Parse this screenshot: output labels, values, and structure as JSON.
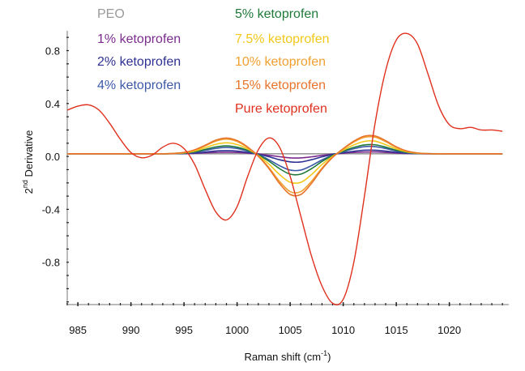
{
  "chart_data": {
    "type": "line",
    "xlabel": "Raman shift (cm",
    "xlabel_sup": "-1",
    "xlabel_end": ")",
    "ylabel": "2",
    "ylabel_sup": "nd",
    "ylabel_end": " Derivative",
    "xlim": [
      984,
      1025.6
    ],
    "ylim": [
      -1.12,
      0.95
    ],
    "xticks": [
      985,
      990,
      995,
      1000,
      1005,
      1010,
      1015,
      1020
    ],
    "xtick_labels": [
      "985",
      "990",
      "995",
      "1000",
      "1005",
      "1010",
      "1015",
      "1020"
    ],
    "yticks": [
      0.8,
      0.4,
      0.0,
      -0.4,
      -0.8
    ],
    "ytick_labels": [
      "0.8",
      "0.4",
      "0.0",
      "-0.4",
      "-0.8"
    ],
    "grid": false,
    "legend_placement": "top",
    "x": [
      984,
      985,
      986,
      987,
      988,
      989,
      990,
      991,
      992,
      993,
      994,
      995,
      996,
      997,
      998,
      999,
      1000,
      1001,
      1002,
      1003,
      1004,
      1005,
      1006,
      1007,
      1008,
      1009,
      1010,
      1011,
      1012,
      1013,
      1014,
      1015,
      1016,
      1017,
      1018,
      1019,
      1020,
      1021,
      1022,
      1023,
      1024,
      1025
    ],
    "series": [
      {
        "name": "PEO",
        "color": "#9a9a9a",
        "values": [
          0.02,
          0.02,
          0.02,
          0.02,
          0.02,
          0.02,
          0.02,
          0.02,
          0.02,
          0.02,
          0.02,
          0.02,
          0.02,
          0.02,
          0.02,
          0.02,
          0.02,
          0.02,
          0.02,
          0.02,
          0.02,
          0.02,
          0.02,
          0.02,
          0.02,
          0.02,
          0.02,
          0.02,
          0.02,
          0.02,
          0.02,
          0.02,
          0.02,
          0.02,
          0.02,
          0.02,
          0.02,
          0.02,
          0.02,
          0.02,
          0.02,
          0.02
        ]
      },
      {
        "name": "1% ketoprofen",
        "color": "#7b2d8e",
        "values": [
          0.02,
          0.02,
          0.02,
          0.02,
          0.02,
          0.02,
          0.02,
          0.02,
          0.02,
          0.02,
          0.02,
          0.021,
          0.023,
          0.027,
          0.03,
          0.032,
          0.03,
          0.025,
          0.018,
          0.009,
          -0.002,
          -0.011,
          -0.011,
          -0.003,
          0.008,
          0.017,
          0.024,
          0.03,
          0.033,
          0.034,
          0.03,
          0.025,
          0.022,
          0.021,
          0.02,
          0.02,
          0.02,
          0.02,
          0.02,
          0.02,
          0.02,
          0.02
        ]
      },
      {
        "name": "2% ketoprofen",
        "color": "#2e3192",
        "values": [
          0.02,
          0.02,
          0.02,
          0.02,
          0.02,
          0.02,
          0.02,
          0.02,
          0.02,
          0.02,
          0.021,
          0.022,
          0.026,
          0.033,
          0.041,
          0.044,
          0.04,
          0.03,
          0.016,
          -0.002,
          -0.025,
          -0.041,
          -0.042,
          -0.025,
          -0.003,
          0.015,
          0.028,
          0.039,
          0.047,
          0.047,
          0.04,
          0.031,
          0.024,
          0.021,
          0.02,
          0.02,
          0.02,
          0.02,
          0.02,
          0.02,
          0.02,
          0.02
        ]
      },
      {
        "name": "4% ketoprofen",
        "color": "#3d5aa8",
        "values": [
          0.02,
          0.02,
          0.02,
          0.02,
          0.02,
          0.02,
          0.02,
          0.02,
          0.02,
          0.02,
          0.021,
          0.024,
          0.032,
          0.046,
          0.061,
          0.068,
          0.06,
          0.04,
          0.013,
          -0.025,
          -0.07,
          -0.103,
          -0.103,
          -0.07,
          -0.026,
          0.009,
          0.036,
          0.058,
          0.074,
          0.074,
          0.06,
          0.041,
          0.028,
          0.022,
          0.02,
          0.02,
          0.02,
          0.02,
          0.02,
          0.02,
          0.02,
          0.02
        ]
      },
      {
        "name": "5% ketoprofen",
        "color": "#1f7a3a",
        "values": [
          0.02,
          0.02,
          0.02,
          0.02,
          0.02,
          0.02,
          0.02,
          0.02,
          0.02,
          0.02,
          0.022,
          0.025,
          0.035,
          0.053,
          0.072,
          0.08,
          0.07,
          0.046,
          0.011,
          -0.036,
          -0.092,
          -0.134,
          -0.134,
          -0.093,
          -0.038,
          0.007,
          0.04,
          0.068,
          0.087,
          0.088,
          0.07,
          0.047,
          0.031,
          0.023,
          0.021,
          0.02,
          0.02,
          0.02,
          0.02,
          0.02,
          0.02,
          0.02
        ]
      },
      {
        "name": "7.5% ketoprofen",
        "color": "#f2c81a",
        "values": [
          0.02,
          0.02,
          0.02,
          0.02,
          0.02,
          0.02,
          0.02,
          0.02,
          0.02,
          0.02,
          0.022,
          0.027,
          0.041,
          0.066,
          0.092,
          0.103,
          0.09,
          0.056,
          0.007,
          -0.058,
          -0.137,
          -0.195,
          -0.196,
          -0.138,
          -0.061,
          0.001,
          0.047,
          0.087,
          0.114,
          0.115,
          0.089,
          0.057,
          0.035,
          0.024,
          0.021,
          0.02,
          0.02,
          0.02,
          0.02,
          0.02,
          0.02,
          0.02
        ]
      },
      {
        "name": "10% ketoprofen",
        "color": "#f0a030",
        "values": [
          0.02,
          0.02,
          0.02,
          0.02,
          0.02,
          0.02,
          0.02,
          0.02,
          0.02,
          0.02,
          0.023,
          0.029,
          0.048,
          0.08,
          0.116,
          0.131,
          0.113,
          0.067,
          0.003,
          -0.084,
          -0.188,
          -0.266,
          -0.266,
          -0.189,
          -0.088,
          -0.005,
          0.056,
          0.109,
          0.145,
          0.146,
          0.112,
          0.069,
          0.04,
          0.026,
          0.021,
          0.02,
          0.02,
          0.02,
          0.02,
          0.02,
          0.02,
          0.02
        ]
      },
      {
        "name": "15% ketoprofen",
        "color": "#e8742a",
        "values": [
          0.02,
          0.02,
          0.02,
          0.02,
          0.02,
          0.02,
          0.02,
          0.02,
          0.02,
          0.02,
          0.023,
          0.03,
          0.05,
          0.085,
          0.123,
          0.139,
          0.12,
          0.071,
          0.002,
          -0.092,
          -0.204,
          -0.287,
          -0.288,
          -0.205,
          -0.096,
          -0.007,
          0.059,
          0.116,
          0.154,
          0.155,
          0.119,
          0.073,
          0.041,
          0.026,
          0.021,
          0.02,
          0.02,
          0.02,
          0.02,
          0.02,
          0.02,
          0.02
        ]
      },
      {
        "name": "Pure ketoprofen",
        "color": "#e0301e",
        "values": [
          0.35,
          0.38,
          0.39,
          0.35,
          0.25,
          0.13,
          0.03,
          -0.01,
          0.01,
          0.07,
          0.1,
          0.06,
          -0.06,
          -0.25,
          -0.42,
          -0.48,
          -0.38,
          -0.15,
          0.05,
          0.14,
          0.07,
          -0.15,
          -0.45,
          -0.75,
          -0.98,
          -1.11,
          -1.08,
          -0.8,
          -0.3,
          0.25,
          0.65,
          0.88,
          0.93,
          0.85,
          0.62,
          0.38,
          0.24,
          0.21,
          0.22,
          0.2,
          0.2,
          0.19
        ]
      }
    ]
  }
}
